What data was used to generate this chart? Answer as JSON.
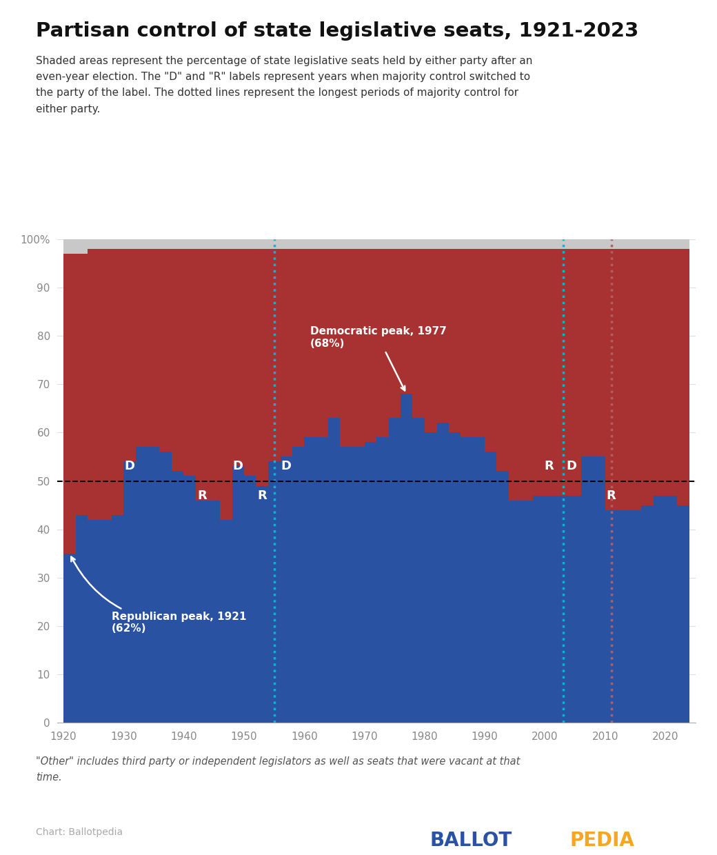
{
  "title": "Partisan control of state legislative seats, 1921-2023",
  "subtitle": "Shaded areas represent the percentage of state legislative seats held by either party after an\neven-year election. The \"D\" and \"R\" labels represent years when majority control switched to\nthe party of the label. The dotted lines represent the longest periods of majority control for\neither party.",
  "footer_note": "\"Other\" includes third party or independent legislators as well as seats that were vacant at that\ntime.",
  "footer_credit": "Chart: Ballotpedia",
  "years": [
    1921,
    1923,
    1925,
    1927,
    1929,
    1931,
    1933,
    1935,
    1937,
    1939,
    1941,
    1943,
    1945,
    1947,
    1949,
    1951,
    1953,
    1955,
    1957,
    1959,
    1961,
    1963,
    1965,
    1967,
    1969,
    1971,
    1973,
    1975,
    1977,
    1979,
    1981,
    1983,
    1985,
    1987,
    1989,
    1991,
    1993,
    1995,
    1997,
    1999,
    2001,
    2003,
    2005,
    2007,
    2009,
    2011,
    2013,
    2015,
    2017,
    2019,
    2021,
    2023
  ],
  "dem_pct": [
    35,
    43,
    42,
    42,
    43,
    54,
    57,
    57,
    56,
    52,
    51,
    46,
    46,
    42,
    53,
    51,
    49,
    54,
    55,
    57,
    59,
    59,
    63,
    57,
    57,
    58,
    59,
    63,
    68,
    63,
    60,
    62,
    60,
    59,
    59,
    56,
    52,
    46,
    46,
    47,
    47,
    47,
    47,
    55,
    55,
    44,
    44,
    44,
    45,
    47,
    47,
    45
  ],
  "rep_pct": [
    62,
    54,
    56,
    56,
    55,
    44,
    41,
    41,
    42,
    46,
    47,
    52,
    52,
    56,
    45,
    47,
    49,
    44,
    43,
    41,
    39,
    39,
    35,
    41,
    41,
    40,
    39,
    35,
    30,
    35,
    38,
    36,
    38,
    39,
    39,
    42,
    46,
    52,
    52,
    51,
    51,
    51,
    51,
    43,
    43,
    54,
    54,
    54,
    53,
    51,
    51,
    53
  ],
  "other_pct": [
    3,
    3,
    2,
    2,
    2,
    2,
    2,
    2,
    2,
    2,
    2,
    2,
    2,
    2,
    2,
    2,
    2,
    2,
    2,
    2,
    2,
    2,
    2,
    2,
    2,
    2,
    2,
    2,
    2,
    2,
    2,
    2,
    2,
    2,
    2,
    2,
    2,
    2,
    2,
    2,
    2,
    2,
    2,
    2,
    2,
    2,
    2,
    2,
    2,
    2,
    2,
    2
  ],
  "dem_color": "#2952a3",
  "rep_color": "#a83232",
  "other_color": "#c8c8c8",
  "dotted_line_dem_x": 1955,
  "dotted_line_rep_x1": 2003,
  "dotted_line_rep_x2": 2011,
  "background_color": "#ffffff",
  "xlim": [
    1919,
    2025
  ],
  "ylim": [
    0,
    100
  ],
  "xticks": [
    1920,
    1930,
    1940,
    1950,
    1960,
    1970,
    1980,
    1990,
    2000,
    2010,
    2020
  ],
  "yticks": [
    0,
    10,
    20,
    30,
    40,
    50,
    60,
    70,
    80,
    90,
    100
  ]
}
